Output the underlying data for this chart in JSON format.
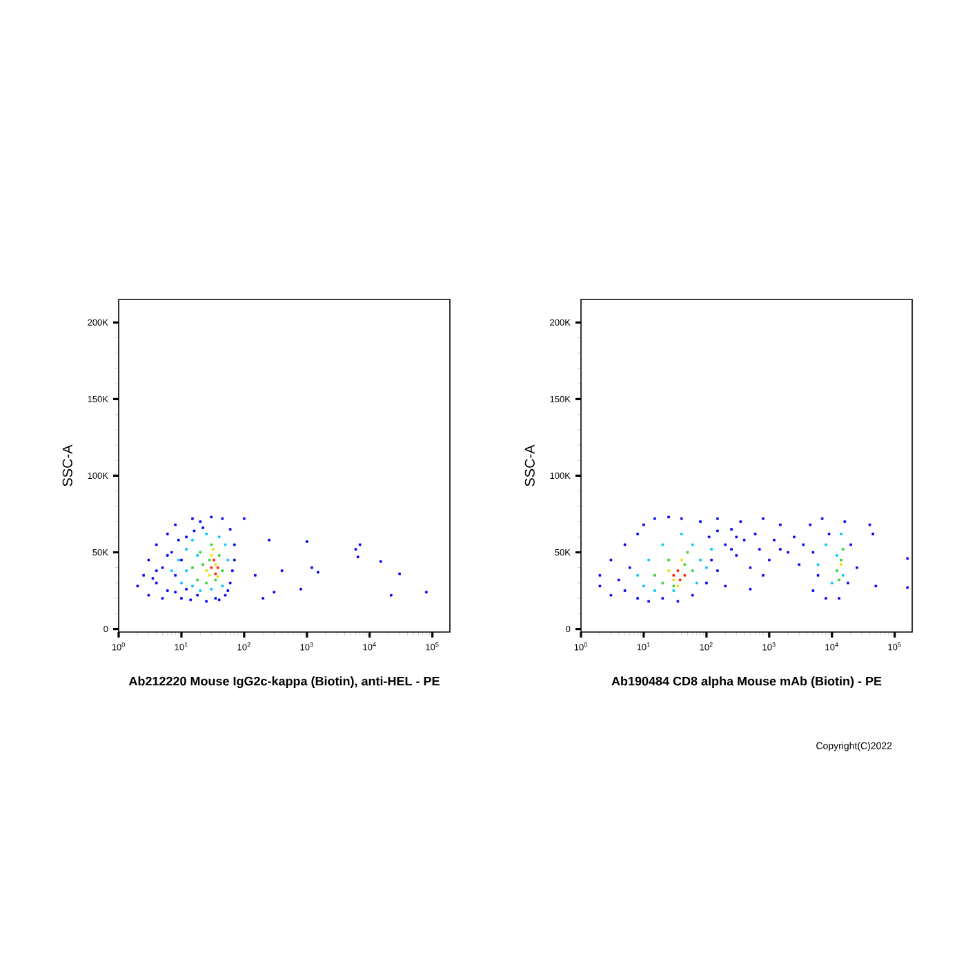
{
  "chart_data": [
    {
      "type": "scatter",
      "xlabel": "Ab212220 Mouse IgG2c-kappa (Biotin), anti-HEL - PE",
      "ylabel": "SSC-A",
      "log": "x",
      "marker": "square",
      "xlim": [
        1,
        190000
      ],
      "ylim": [
        -2000,
        215000
      ],
      "xticks": [
        {
          "value": 1,
          "label": "10$^{0}$"
        },
        {
          "value": 10,
          "label": "10$^{1}$"
        },
        {
          "value": 100,
          "label": "10$^{2}$"
        },
        {
          "value": 1000,
          "label": "10$^{3}$"
        },
        {
          "value": 10000,
          "label": "10$^{4}$"
        },
        {
          "value": 100000,
          "label": "10$^{5}$"
        }
      ],
      "yticks": [
        0,
        {
          "value": 50000,
          "label": "50K"
        },
        {
          "value": 100000,
          "label": "100K"
        },
        {
          "value": 150000,
          "label": "150K"
        },
        {
          "value": 200000,
          "label": "200K"
        }
      ],
      "series": [
        {
          "color": "#0000ff",
          "x": [
            2,
            2.5,
            3,
            3,
            4,
            4,
            5,
            5,
            6,
            6,
            7,
            8,
            8,
            10,
            10,
            12,
            14,
            15,
            18,
            20,
            25,
            30,
            35,
            45,
            50,
            60,
            60,
            70,
            70,
            55,
            4,
            6,
            9,
            3.5,
            12,
            8,
            40,
            65,
            22,
            16,
            100,
            150,
            200,
            250,
            300,
            400,
            800,
            1000,
            1200,
            1500,
            6000,
            7000,
            6500,
            15000,
            30000,
            22000,
            80000
          ],
          "values": [
            28000,
            35000,
            22000,
            45000,
            30000,
            55000,
            20000,
            40000,
            62000,
            25000,
            50000,
            35000,
            68000,
            20000,
            45000,
            60000,
            19000,
            72000,
            22000,
            70000,
            18000,
            73000,
            20000,
            72000,
            22000,
            30000,
            65000,
            45000,
            55000,
            25000,
            38000,
            48000,
            58000,
            33000,
            26000,
            24000,
            19000,
            38000,
            66000,
            64000,
            72000,
            35000,
            20000,
            58000,
            24000,
            38000,
            26000,
            57000,
            40000,
            37000,
            52000,
            55000,
            47000,
            44000,
            36000,
            22000,
            24000
          ]
        },
        {
          "color": "#00c8ff",
          "x": [
            7,
            9,
            10,
            12,
            15,
            15,
            20,
            25,
            30,
            40,
            45,
            55,
            50,
            18,
            12
          ],
          "values": [
            38000,
            45000,
            30000,
            52000,
            28000,
            58000,
            25000,
            62000,
            26000,
            60000,
            28000,
            45000,
            55000,
            48000,
            38000
          ]
        },
        {
          "color": "#32d232",
          "x": [
            15,
            18,
            20,
            25,
            30,
            35,
            40,
            45,
            22,
            28
          ],
          "values": [
            40000,
            32000,
            50000,
            30000,
            55000,
            32000,
            48000,
            38000,
            42000,
            45000
          ]
        },
        {
          "color": "#f0e000",
          "x": [
            25,
            30,
            35,
            38,
            28,
            32
          ],
          "values": [
            38000,
            48000,
            42000,
            34000,
            35000,
            52000
          ]
        },
        {
          "color": "#ff2000",
          "x": [
            30,
            35,
            33,
            38
          ],
          "values": [
            40000,
            36000,
            45000,
            40000
          ]
        }
      ]
    },
    {
      "type": "scatter",
      "xlabel": "Ab190484 CD8 alpha Mouse mAb (Biotin) - PE",
      "ylabel": "SSC-A",
      "log": "x",
      "marker": "square",
      "xlim": [
        1,
        190000
      ],
      "ylim": [
        -2000,
        215000
      ],
      "xticks": [
        {
          "value": 1,
          "label": "10$^{0}$"
        },
        {
          "value": 10,
          "label": "10$^{1}$"
        },
        {
          "value": 100,
          "label": "10$^{2}$"
        },
        {
          "value": 1000,
          "label": "10$^{3}$"
        },
        {
          "value": 10000,
          "label": "10$^{4}$"
        },
        {
          "value": 100000,
          "label": "10$^{5}$"
        }
      ],
      "yticks": [
        0,
        {
          "value": 50000,
          "label": "50K"
        },
        {
          "value": 100000,
          "label": "100K"
        },
        {
          "value": 150000,
          "label": "150K"
        },
        {
          "value": 200000,
          "label": "200K"
        }
      ],
      "annotations": [
        "Copyright(C)2022"
      ],
      "series": [
        {
          "color": "#0000ff",
          "x": [
            2,
            2,
            3,
            3,
            4,
            5,
            5,
            6,
            8,
            8,
            10,
            12,
            15,
            20,
            25,
            35,
            40,
            60,
            80,
            100,
            110,
            120,
            150,
            150,
            200,
            250,
            300,
            350,
            400,
            500,
            600,
            700,
            800,
            1000,
            1200,
            1500,
            2000,
            2500,
            3000,
            3500,
            200,
            500,
            150,
            4500,
            5000,
            5000,
            6000,
            7000,
            8000,
            9000,
            13000,
            16000,
            18000,
            20000,
            25000,
            40000,
            45000,
            50000,
            160000,
            160000,
            250,
            800,
            300,
            1500
          ],
          "values": [
            28000,
            35000,
            22000,
            45000,
            32000,
            55000,
            25000,
            40000,
            20000,
            62000,
            68000,
            18000,
            72000,
            20000,
            73000,
            18000,
            72000,
            22000,
            70000,
            30000,
            60000,
            45000,
            72000,
            38000,
            55000,
            65000,
            48000,
            70000,
            58000,
            40000,
            62000,
            52000,
            72000,
            45000,
            58000,
            68000,
            50000,
            60000,
            42000,
            55000,
            28000,
            26000,
            64000,
            68000,
            25000,
            50000,
            35000,
            72000,
            20000,
            62000,
            20000,
            70000,
            30000,
            55000,
            40000,
            68000,
            62000,
            28000,
            46000,
            27000,
            52000,
            35000,
            60000,
            52000
          ]
        },
        {
          "color": "#00c8ff",
          "x": [
            8,
            10,
            12,
            15,
            20,
            30,
            40,
            60,
            70,
            80,
            6000,
            8000,
            10000,
            14000,
            15000,
            12000,
            120,
            100
          ],
          "values": [
            35000,
            28000,
            45000,
            25000,
            55000,
            25000,
            62000,
            55000,
            30000,
            45000,
            42000,
            55000,
            30000,
            62000,
            35000,
            48000,
            52000,
            40000
          ]
        },
        {
          "color": "#32d232",
          "x": [
            15,
            20,
            25,
            30,
            50,
            60,
            45,
            12000,
            14000,
            15000,
            13000
          ],
          "values": [
            35000,
            30000,
            45000,
            28000,
            50000,
            38000,
            42000,
            38000,
            45000,
            52000,
            32000
          ]
        },
        {
          "color": "#f0e000",
          "x": [
            25,
            30,
            40,
            35,
            14000
          ],
          "values": [
            38000,
            32000,
            45000,
            28000,
            42000
          ]
        },
        {
          "color": "#ff2000",
          "x": [
            30,
            38,
            35,
            45
          ],
          "values": [
            35000,
            32000,
            38000,
            35000
          ]
        }
      ]
    }
  ]
}
